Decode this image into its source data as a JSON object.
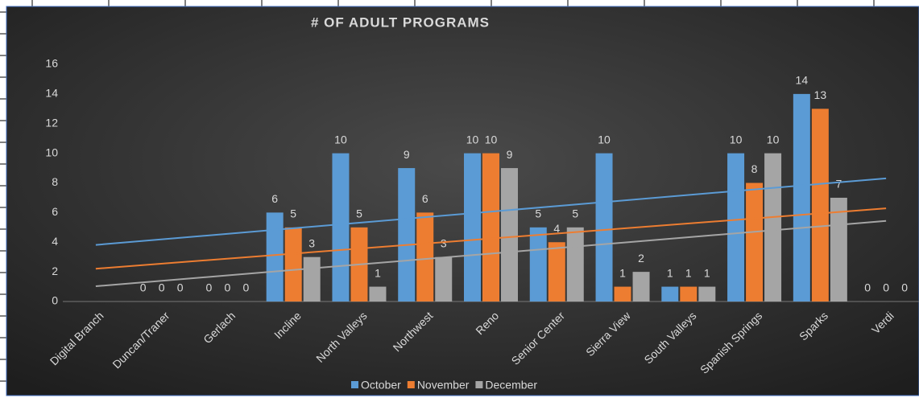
{
  "chart_data": {
    "type": "bar",
    "title": "# OF ADULT PROGRAMS",
    "categories": [
      "Digital Branch",
      "Duncan/Traner",
      "Gerlach",
      "Incline",
      "North Valleys",
      "Northwest",
      "Reno",
      "Senior Center",
      "Sierra View",
      "South Valleys",
      "Spanish Springs",
      "Sparks",
      "Verdi"
    ],
    "series": [
      {
        "name": "October",
        "color": "#5b9bd5",
        "values": [
          null,
          0,
          0,
          6,
          10,
          9,
          10,
          5,
          10,
          1,
          10,
          14,
          0
        ]
      },
      {
        "name": "November",
        "color": "#ed7d31",
        "values": [
          null,
          0,
          0,
          5,
          5,
          6,
          10,
          4,
          1,
          1,
          8,
          13,
          0
        ]
      },
      {
        "name": "December",
        "color": "#a5a5a5",
        "values": [
          null,
          0,
          0,
          3,
          1,
          3,
          9,
          5,
          2,
          1,
          10,
          7,
          0
        ]
      }
    ],
    "ylim": [
      0,
      16
    ],
    "yticks": [
      0,
      2,
      4,
      6,
      8,
      10,
      12,
      14,
      16
    ],
    "trendline": "linear",
    "legend": "bottom",
    "grid": false
  }
}
